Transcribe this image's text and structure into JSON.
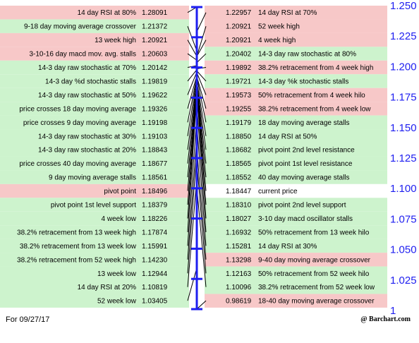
{
  "chart_data": {
    "type": "pivot-ladder",
    "current_price": {
      "label": "current price",
      "value": "1.18447"
    },
    "left_rows": [
      {
        "label": "14 day RSI at 80%",
        "value": "1.28091",
        "side": "res"
      },
      {
        "label": "9-18 day moving average crossover",
        "value": "1.21372",
        "side": "sup"
      },
      {
        "label": "13 week high",
        "value": "1.20921",
        "side": "res"
      },
      {
        "label": "3-10-16 day macd mov. avg. stalls",
        "value": "1.20603",
        "side": "res"
      },
      {
        "label": "14-3 day raw stochastic at 70%",
        "value": "1.20142",
        "side": "sup"
      },
      {
        "label": "14-3 day %d stochastic stalls",
        "value": "1.19819",
        "side": "sup"
      },
      {
        "label": "14-3 day raw stochastic at 50%",
        "value": "1.19622",
        "side": "sup"
      },
      {
        "label": "price crosses 18 day moving average",
        "value": "1.19326",
        "side": "sup"
      },
      {
        "label": "price crosses 9 day moving average",
        "value": "1.19198",
        "side": "sup"
      },
      {
        "label": "14-3 day raw stochastic at 30%",
        "value": "1.19103",
        "side": "sup"
      },
      {
        "label": "14-3 day raw stochastic at 20%",
        "value": "1.18843",
        "side": "sup"
      },
      {
        "label": "price crosses 40 day moving average",
        "value": "1.18677",
        "side": "sup"
      },
      {
        "label": "9 day moving average stalls",
        "value": "1.18561",
        "side": "sup"
      },
      {
        "label": "pivot point",
        "value": "1.18496",
        "side": "res"
      },
      {
        "label": "pivot point 1st level support",
        "value": "1.18379",
        "side": "sup"
      },
      {
        "label": "4 week low",
        "value": "1.18226",
        "side": "sup"
      },
      {
        "label": "38.2% retracement from 13 week high",
        "value": "1.17874",
        "side": "sup"
      },
      {
        "label": "38.2% retracement from 13 week low",
        "value": "1.15991",
        "side": "sup"
      },
      {
        "label": "38.2% retracement from 52 week high",
        "value": "1.14230",
        "side": "sup"
      },
      {
        "label": "13 week low",
        "value": "1.12944",
        "side": "sup"
      },
      {
        "label": "14 day RSI at 20%",
        "value": "1.10819",
        "side": "sup"
      },
      {
        "label": "52 week low",
        "value": "1.03405",
        "side": "sup"
      }
    ],
    "right_rows": [
      {
        "label": "14 day RSI at 70%",
        "value": "1.22957",
        "side": "res"
      },
      {
        "label": "52 week high",
        "value": "1.20921",
        "side": "res"
      },
      {
        "label": "4 week high",
        "value": "1.20921",
        "side": "res"
      },
      {
        "label": "14-3 day raw stochastic at 80%",
        "value": "1.20402",
        "side": "sup"
      },
      {
        "label": "38.2% retracement from 4 week high",
        "value": "1.19892",
        "side": "res"
      },
      {
        "label": "14-3 day %k stochastic stalls",
        "value": "1.19721",
        "side": "sup"
      },
      {
        "label": "50% retracement from 4 week hilo",
        "value": "1.19573",
        "side": "res"
      },
      {
        "label": "38.2% retracement from 4 week low",
        "value": "1.19255",
        "side": "res"
      },
      {
        "label": "18 day moving average stalls",
        "value": "1.19179",
        "side": "sup"
      },
      {
        "label": "14 day RSI at 50%",
        "value": "1.18850",
        "side": "sup"
      },
      {
        "label": "pivot point 2nd level resistance",
        "value": "1.18682",
        "side": "sup"
      },
      {
        "label": "pivot point 1st level resistance",
        "value": "1.18565",
        "side": "sup"
      },
      {
        "label": "40 day moving average stalls",
        "value": "1.18552",
        "side": "sup"
      },
      {
        "label": "current price",
        "value": "1.18447",
        "side": "current"
      },
      {
        "label": "pivot point 2nd level support",
        "value": "1.18310",
        "side": "sup"
      },
      {
        "label": "3-10 day macd oscillator stalls",
        "value": "1.18027",
        "side": "sup"
      },
      {
        "label": "50% retracement from 13 week hilo",
        "value": "1.16932",
        "side": "sup"
      },
      {
        "label": "14 day RSI at 30%",
        "value": "1.15281",
        "side": "sup"
      },
      {
        "label": "9-40 day moving average crossover",
        "value": "1.13298",
        "side": "res"
      },
      {
        "label": "50% retracement from 52 week hilo",
        "value": "1.12163",
        "side": "sup"
      },
      {
        "label": "38.2% retracement from 52 week low",
        "value": "1.10096",
        "side": "sup"
      },
      {
        "label": "18-40 day moving average crossover",
        "value": "0.98619",
        "side": "res"
      }
    ],
    "y_axis": {
      "ticks": [
        "1.250",
        "1.225",
        "1.200",
        "1.175",
        "1.150",
        "1.125",
        "1.100",
        "1.075",
        "1.050",
        "1.025",
        "1"
      ],
      "ylim": [
        1.0,
        1.25
      ]
    },
    "scale_marks": [
      1.25,
      1.225,
      1.2,
      1.175,
      1.15,
      1.125,
      1.1,
      1.075,
      1.05,
      1.025,
      1.0
    ],
    "colors": {
      "resistance_bg": "#f7c8c8",
      "support_bg": "#cdf3cd",
      "current_bg": "#ffffff",
      "axis": "#1e1ef0",
      "tick_text": "#1e1ef0",
      "connector": "#000000"
    }
  },
  "footer": {
    "date": "For 09/27/17",
    "brand": "@ Barchart.com"
  }
}
